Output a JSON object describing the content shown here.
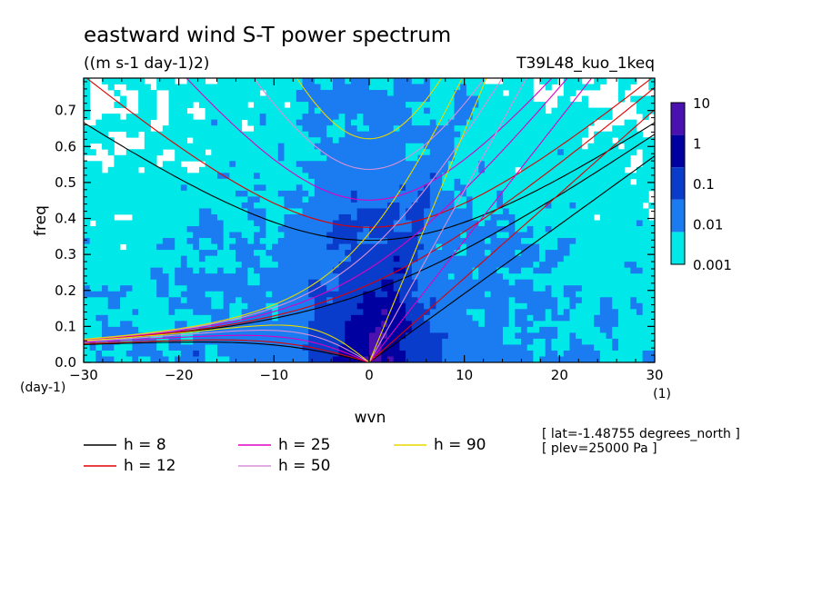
{
  "chart_data": {
    "type": "heatmap",
    "title": "eastward wind S-T power spectrum",
    "subtitle": "((m s-1 day-1)2)",
    "experiment": "T39L48_kuo_1keq",
    "xlabel": "wvn",
    "ylabel": "freq",
    "x_unit": "(1)",
    "y_unit": "(day-1)",
    "xlim": [
      -30,
      30
    ],
    "ylim": [
      0,
      0.79
    ],
    "xticks": [
      -30,
      -20,
      -10,
      0,
      10,
      20,
      30
    ],
    "yticks": [
      0.0,
      0.1,
      0.2,
      0.3,
      0.4,
      0.5,
      0.6,
      0.7
    ],
    "ytick_labels": [
      "0.0",
      "0.1",
      "0.2",
      "0.3",
      "0.4",
      "0.5",
      "0.6",
      "0.7"
    ],
    "colorbar": {
      "levels": [
        "0.001",
        "0.01",
        "0.1",
        "1",
        "10"
      ],
      "colors": [
        "#00e8e8",
        "#1a7cf0",
        "#0a3ccc",
        "#0000a0",
        "#4a10b0"
      ]
    },
    "dispersion_curves": [
      {
        "name": "h =  8",
        "h": 8,
        "color": "#000000"
      },
      {
        "name": "h = 12",
        "h": 12,
        "color": "#e00000"
      },
      {
        "name": "h = 25",
        "h": 25,
        "color": "#e000c0"
      },
      {
        "name": "h = 50",
        "h": 50,
        "color": "#d890d8"
      },
      {
        "name": "h = 90",
        "h": 90,
        "color": "#e8d800"
      }
    ],
    "info_lines": [
      "[ lat=-1.48755 degrees_north ]",
      "[ plev=25000 Pa ]"
    ]
  }
}
